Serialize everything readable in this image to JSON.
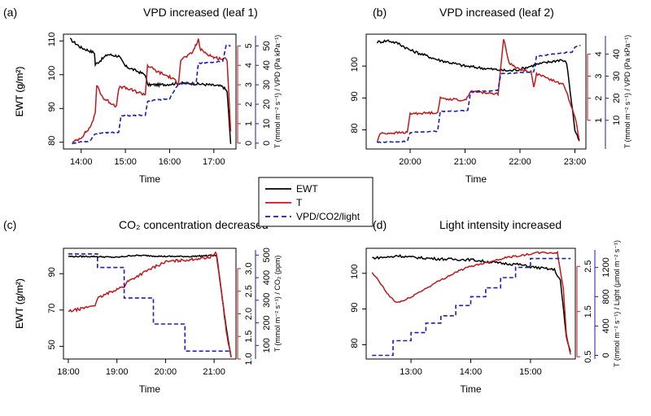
{
  "legend": {
    "items": [
      {
        "label": "EWT",
        "color": "#000000",
        "dash": false
      },
      {
        "label": "T",
        "color": "#c0191e",
        "dash": false
      },
      {
        "label": "VPD/CO2/light",
        "color": "#1d1db0",
        "dash": true
      }
    ]
  },
  "chart_data": [
    {
      "id": "a",
      "letter": "(a)",
      "type": "line",
      "title": "VPD increased (leaf 1)",
      "xlabel": "Time",
      "ylabel": "EWT (g/m²)",
      "right_label": "T (mmol m⁻² s⁻¹) / VPD (Pa kPa⁻¹)",
      "xlim": [
        13.6,
        17.5
      ],
      "xticks": [
        14,
        15,
        16,
        17
      ],
      "xtick_labels": [
        "14:00",
        "15:00",
        "16:00",
        "17:00"
      ],
      "left_axis": {
        "lim": [
          78,
          112
        ],
        "ticks": [
          80,
          90,
          100,
          110
        ]
      },
      "right_inner": {
        "lim": [
          -0.3,
          5.6
        ],
        "ticks": [
          0,
          1,
          2,
          3,
          4,
          5
        ]
      },
      "right_outer": {
        "lim": [
          -3,
          56
        ],
        "ticks": [
          0,
          10,
          20,
          30,
          40,
          50
        ]
      },
      "series": [
        {
          "name": "EWT",
          "axis": "left",
          "color": "#000000",
          "dash": false,
          "noise": 0.4,
          "x": [
            13.75,
            13.85,
            14.0,
            14.2,
            14.3,
            14.32,
            14.6,
            14.85,
            15.0,
            15.45,
            15.5,
            15.8,
            16.0,
            16.2,
            16.5,
            16.9,
            17.2,
            17.3,
            17.38
          ],
          "y": [
            110.5,
            109.5,
            108.0,
            107.0,
            106.5,
            103.0,
            106.0,
            105.5,
            102.5,
            100.0,
            97.0,
            97.0,
            97.2,
            97.5,
            97.4,
            97.0,
            96.5,
            95.0,
            79.5
          ]
        },
        {
          "name": "T",
          "axis": "right_inner",
          "color": "#c0191e",
          "dash": false,
          "noise": 0.08,
          "x": [
            13.8,
            14.0,
            14.2,
            14.32,
            14.35,
            14.5,
            14.8,
            14.85,
            14.9,
            15.45,
            15.5,
            15.7,
            16.0,
            16.2,
            16.25,
            16.5,
            16.65,
            16.7,
            17.0,
            17.3,
            17.38
          ],
          "y": [
            0.0,
            0.3,
            0.8,
            1.5,
            3.0,
            2.3,
            1.9,
            2.8,
            2.9,
            2.5,
            4.0,
            3.7,
            3.4,
            3.1,
            4.3,
            4.6,
            5.3,
            4.8,
            4.4,
            4.3,
            0.6
          ]
        },
        {
          "name": "VPD",
          "axis": "right_inner",
          "color": "#1d1db0",
          "dash": true,
          "noise": 0.03,
          "x": [
            13.8,
            14.2,
            14.32,
            14.85,
            14.9,
            15.45,
            15.5,
            16.0,
            16.2,
            16.6,
            16.65,
            17.2,
            17.28,
            17.38
          ],
          "y": [
            0.0,
            0.1,
            0.5,
            0.55,
            1.4,
            1.45,
            2.15,
            2.3,
            3.05,
            3.1,
            4.1,
            4.2,
            5.05,
            5.0
          ]
        }
      ]
    },
    {
      "id": "b",
      "letter": "(b)",
      "type": "line",
      "title": "VPD increased (leaf 2)",
      "xlabel": "Time",
      "ylabel": "EWT (g/m²)",
      "right_label": "T (mmol m⁻² s⁻¹) / VPD (Pa kPa⁻¹)",
      "xlim": [
        19.2,
        23.2
      ],
      "xticks": [
        20,
        21,
        22,
        23
      ],
      "xtick_labels": [
        "20:00",
        "21:00",
        "22:00",
        "23:00"
      ],
      "left_axis": {
        "lim": [
          74,
          110
        ],
        "ticks": [
          80,
          90,
          100
        ]
      },
      "right_inner": {
        "lim": [
          -0.3,
          4.9
        ],
        "ticks": [
          1,
          2,
          3,
          4
        ]
      },
      "right_outer": {
        "lim": [
          -3,
          49
        ],
        "ticks": [
          10,
          20,
          30,
          40
        ]
      },
      "series": [
        {
          "name": "EWT",
          "axis": "left",
          "color": "#000000",
          "dash": false,
          "noise": 0.45,
          "x": [
            19.4,
            19.6,
            19.8,
            20.0,
            20.5,
            21.0,
            21.5,
            21.8,
            22.0,
            22.3,
            22.6,
            22.75,
            22.85,
            23.0,
            23.08
          ],
          "y": [
            107.5,
            108.0,
            107.0,
            105.0,
            102.0,
            100.0,
            99.0,
            98.5,
            99.0,
            100.5,
            101.5,
            102.0,
            101.0,
            80.0,
            76.5
          ]
        },
        {
          "name": "T",
          "axis": "right_inner",
          "color": "#c0191e",
          "dash": false,
          "noise": 0.05,
          "x": [
            19.4,
            19.45,
            19.95,
            20.0,
            20.5,
            20.55,
            21.0,
            21.1,
            21.6,
            21.65,
            21.7,
            21.8,
            22.0,
            22.2,
            22.25,
            22.3,
            22.5,
            22.8,
            23.0,
            23.08
          ],
          "y": [
            0.0,
            0.4,
            0.45,
            1.3,
            1.35,
            2.0,
            1.9,
            2.3,
            2.2,
            3.4,
            4.7,
            3.6,
            3.3,
            3.2,
            2.5,
            3.1,
            2.9,
            2.6,
            1.2,
            0.1
          ]
        },
        {
          "name": "VPD",
          "axis": "right_inner",
          "color": "#1d1db0",
          "dash": true,
          "noise": 0.02,
          "x": [
            19.4,
            19.95,
            20.0,
            20.5,
            20.55,
            21.05,
            21.1,
            21.6,
            21.65,
            22.25,
            22.3,
            22.95,
            23.0,
            23.1
          ],
          "y": [
            0.0,
            0.05,
            0.45,
            0.5,
            1.4,
            1.45,
            2.3,
            2.35,
            3.1,
            3.2,
            3.9,
            4.1,
            4.3,
            4.4
          ]
        }
      ]
    },
    {
      "id": "c",
      "letter": "(c)",
      "type": "line",
      "title": "CO₂ concentration decreased",
      "xlabel": "Time",
      "ylabel": "EWT (g/m²)",
      "right_label": "T (mmol m⁻² s⁻¹) / CO₂ (ppm)",
      "xlim": [
        17.9,
        21.45
      ],
      "xticks": [
        18,
        19,
        20,
        21
      ],
      "xtick_labels": [
        "18:00",
        "19:00",
        "20:00",
        "21:00"
      ],
      "left_axis": {
        "lim": [
          43,
          104
        ],
        "ticks": [
          50,
          70,
          90
        ]
      },
      "right_inner": {
        "lim": [
          1.0,
          3.45
        ],
        "ticks": [
          1.0,
          1.5,
          2.0,
          2.5,
          3.0
        ]
      },
      "right_outer": {
        "lim": [
          40,
          530
        ],
        "ticks": [
          100,
          200,
          300,
          400,
          500
        ]
      },
      "series": [
        {
          "name": "EWT",
          "axis": "left",
          "color": "#000000",
          "dash": false,
          "noise": 0.35,
          "x": [
            18.0,
            18.5,
            19.0,
            19.3,
            19.6,
            20.0,
            20.5,
            20.9,
            21.05,
            21.15,
            21.25,
            21.35
          ],
          "y": [
            99.5,
            99.5,
            99.0,
            100.0,
            100.0,
            99.5,
            99.5,
            100.0,
            100.0,
            80.0,
            60.0,
            44.0
          ]
        },
        {
          "name": "T",
          "axis": "right_inner",
          "color": "#c0191e",
          "dash": false,
          "noise": 0.03,
          "x": [
            18.0,
            18.3,
            18.55,
            18.62,
            19.0,
            19.15,
            19.2,
            19.7,
            20.0,
            20.5,
            20.9,
            21.05,
            21.15,
            21.25,
            21.35
          ],
          "y": [
            2.05,
            2.12,
            2.2,
            2.35,
            2.55,
            2.6,
            2.7,
            3.0,
            3.15,
            3.2,
            3.25,
            3.35,
            2.5,
            1.6,
            1.05
          ]
        },
        {
          "name": "CO2",
          "axis": "right_outer",
          "color": "#1d1db0",
          "dash": true,
          "noise": 0,
          "step": true,
          "x": [
            18.0,
            18.6,
            19.15,
            19.75,
            20.4,
            21.35
          ],
          "y": [
            505,
            445,
            310,
            195,
            75,
            75
          ]
        }
      ]
    },
    {
      "id": "d",
      "letter": "(d)",
      "type": "line",
      "title": "Light intensity increased",
      "xlabel": "Time",
      "ylabel": "EWT (g/m²)",
      "right_label": "T (mmol m⁻² s⁻¹) / Light (μmol m⁻² s⁻¹)",
      "xlim": [
        12.25,
        15.75
      ],
      "xticks": [
        13,
        14,
        15
      ],
      "xtick_labels": [
        "13:00",
        "14:00",
        "15:00"
      ],
      "left_axis": {
        "lim": [
          76,
          107
        ],
        "ticks": [
          80,
          90,
          100
        ]
      },
      "right_inner": {
        "lim": [
          0.45,
          2.9
        ],
        "ticks": [
          0.5,
          1.5,
          2.5
        ]
      },
      "right_outer": {
        "lim": [
          -50,
          1460
        ],
        "ticks": [
          0,
          400,
          800,
          1200
        ]
      },
      "series": [
        {
          "name": "EWT",
          "axis": "left",
          "color": "#000000",
          "dash": false,
          "noise": 0.35,
          "x": [
            12.35,
            12.7,
            12.75,
            13.0,
            13.5,
            14.0,
            14.5,
            14.8,
            15.0,
            15.4,
            15.5,
            15.6,
            15.67
          ],
          "y": [
            104.3,
            104.6,
            105.0,
            104.5,
            104.0,
            103.8,
            102.8,
            102.5,
            101.8,
            101.0,
            98.0,
            82.0,
            78.0
          ]
        },
        {
          "name": "T",
          "axis": "right_inner",
          "color": "#c0191e",
          "dash": false,
          "noise": 0.02,
          "x": [
            12.35,
            12.45,
            12.6,
            12.75,
            12.9,
            13.1,
            13.3,
            13.5,
            13.8,
            14.0,
            14.3,
            14.6,
            14.9,
            15.1,
            15.3,
            15.45,
            15.55,
            15.6,
            15.67
          ],
          "y": [
            2.35,
            2.2,
            1.9,
            1.7,
            1.75,
            1.9,
            2.05,
            2.2,
            2.4,
            2.5,
            2.6,
            2.7,
            2.75,
            2.8,
            2.8,
            2.8,
            2.0,
            1.0,
            0.55
          ]
        },
        {
          "name": "Light",
          "axis": "right_outer",
          "color": "#1d1db0",
          "dash": true,
          "noise": 0,
          "step": true,
          "x": [
            12.35,
            12.7,
            13.0,
            13.25,
            13.5,
            13.75,
            14.0,
            14.25,
            14.5,
            14.75,
            15.0,
            15.67
          ],
          "y": [
            0,
            200,
            310,
            440,
            540,
            680,
            800,
            920,
            1060,
            1200,
            1320,
            1320
          ]
        }
      ]
    }
  ]
}
